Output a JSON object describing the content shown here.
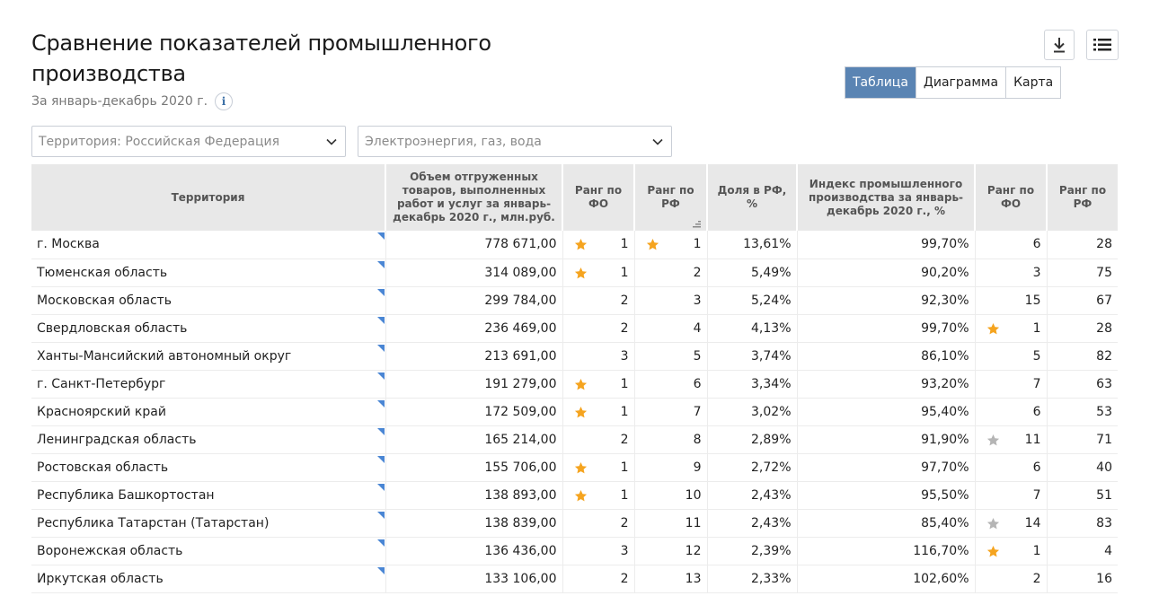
{
  "header": {
    "title": "Сравнение показателей промышленного производства",
    "subtitle": "За январь-декабрь 2020 г.",
    "info_label": "i"
  },
  "toolbar": {
    "download_icon": "download-icon",
    "menu_icon": "list-menu-icon"
  },
  "view_tabs": [
    {
      "label": "Таблица",
      "active": true
    },
    {
      "label": "Диаграмма",
      "active": false
    },
    {
      "label": "Карта",
      "active": false
    }
  ],
  "filters": {
    "territory": "Территория: Российская  Федерация",
    "industry": "Электроэнергия, газ, вода"
  },
  "colors": {
    "accent": "#5a84b3",
    "star_gold": "#f5a41f",
    "star_gray": "#b5b5b5",
    "corner_marker": "#4a86d4"
  },
  "table": {
    "columns": [
      "Территория",
      "Объем отгруженных товаров, выполненных работ и услуг за январь-декабрь 2020 г., млн.руб.",
      "Ранг по ФО",
      "Ранг по РФ",
      "Доля в РФ, %",
      "Индекс промышленного производства за январь-декабрь 2020 г., %",
      "Ранг по ФО",
      "Ранг по РФ"
    ],
    "rows": [
      {
        "name": "г. Москва",
        "volume": "778 671,00",
        "rank_fo": "1",
        "rank_fo_star": "gold",
        "rank_rf": "1",
        "rank_rf_star": "gold",
        "share": "13,61%",
        "index": "99,70%",
        "idx_rank_fo": "6",
        "idx_rank_fo_star": "",
        "idx_rank_rf": "28"
      },
      {
        "name": "Тюменская область",
        "volume": "314 089,00",
        "rank_fo": "1",
        "rank_fo_star": "gold",
        "rank_rf": "2",
        "rank_rf_star": "",
        "share": "5,49%",
        "index": "90,20%",
        "idx_rank_fo": "3",
        "idx_rank_fo_star": "",
        "idx_rank_rf": "75"
      },
      {
        "name": "Московская область",
        "volume": "299 784,00",
        "rank_fo": "2",
        "rank_fo_star": "",
        "rank_rf": "3",
        "rank_rf_star": "",
        "share": "5,24%",
        "index": "92,30%",
        "idx_rank_fo": "15",
        "idx_rank_fo_star": "",
        "idx_rank_rf": "67"
      },
      {
        "name": "Свердловская область",
        "volume": "236 469,00",
        "rank_fo": "2",
        "rank_fo_star": "",
        "rank_rf": "4",
        "rank_rf_star": "",
        "share": "4,13%",
        "index": "99,70%",
        "idx_rank_fo": "1",
        "idx_rank_fo_star": "gold",
        "idx_rank_rf": "28"
      },
      {
        "name": "Ханты-Мансийский автономный округ",
        "volume": "213 691,00",
        "rank_fo": "3",
        "rank_fo_star": "",
        "rank_rf": "5",
        "rank_rf_star": "",
        "share": "3,74%",
        "index": "86,10%",
        "idx_rank_fo": "5",
        "idx_rank_fo_star": "",
        "idx_rank_rf": "82"
      },
      {
        "name": "г. Санкт-Петербург",
        "volume": "191 279,00",
        "rank_fo": "1",
        "rank_fo_star": "gold",
        "rank_rf": "6",
        "rank_rf_star": "",
        "share": "3,34%",
        "index": "93,20%",
        "idx_rank_fo": "7",
        "idx_rank_fo_star": "",
        "idx_rank_rf": "63"
      },
      {
        "name": "Красноярский край",
        "volume": "172 509,00",
        "rank_fo": "1",
        "rank_fo_star": "gold",
        "rank_rf": "7",
        "rank_rf_star": "",
        "share": "3,02%",
        "index": "95,40%",
        "idx_rank_fo": "6",
        "idx_rank_fo_star": "",
        "idx_rank_rf": "53"
      },
      {
        "name": "Ленинградская область",
        "volume": "165 214,00",
        "rank_fo": "2",
        "rank_fo_star": "",
        "rank_rf": "8",
        "rank_rf_star": "",
        "share": "2,89%",
        "index": "91,90%",
        "idx_rank_fo": "11",
        "idx_rank_fo_star": "gray",
        "idx_rank_rf": "71"
      },
      {
        "name": "Ростовская область",
        "volume": "155 706,00",
        "rank_fo": "1",
        "rank_fo_star": "gold",
        "rank_rf": "9",
        "rank_rf_star": "",
        "share": "2,72%",
        "index": "97,70%",
        "idx_rank_fo": "6",
        "idx_rank_fo_star": "",
        "idx_rank_rf": "40"
      },
      {
        "name": "Республика Башкортостан",
        "volume": "138 893,00",
        "rank_fo": "1",
        "rank_fo_star": "gold",
        "rank_rf": "10",
        "rank_rf_star": "",
        "share": "2,43%",
        "index": "95,50%",
        "idx_rank_fo": "7",
        "idx_rank_fo_star": "",
        "idx_rank_rf": "51"
      },
      {
        "name": "Республика Татарстан (Татарстан)",
        "volume": "138 839,00",
        "rank_fo": "2",
        "rank_fo_star": "",
        "rank_rf": "11",
        "rank_rf_star": "",
        "share": "2,43%",
        "index": "85,40%",
        "idx_rank_fo": "14",
        "idx_rank_fo_star": "gray",
        "idx_rank_rf": "83"
      },
      {
        "name": "Воронежская область",
        "volume": "136 436,00",
        "rank_fo": "3",
        "rank_fo_star": "",
        "rank_rf": "12",
        "rank_rf_star": "",
        "share": "2,39%",
        "index": "116,70%",
        "idx_rank_fo": "1",
        "idx_rank_fo_star": "gold",
        "idx_rank_rf": "4"
      },
      {
        "name": "Иркутская область",
        "volume": "133 106,00",
        "rank_fo": "2",
        "rank_fo_star": "",
        "rank_rf": "13",
        "rank_rf_star": "",
        "share": "2,33%",
        "index": "102,60%",
        "idx_rank_fo": "2",
        "idx_rank_fo_star": "",
        "idx_rank_rf": "16"
      }
    ]
  }
}
